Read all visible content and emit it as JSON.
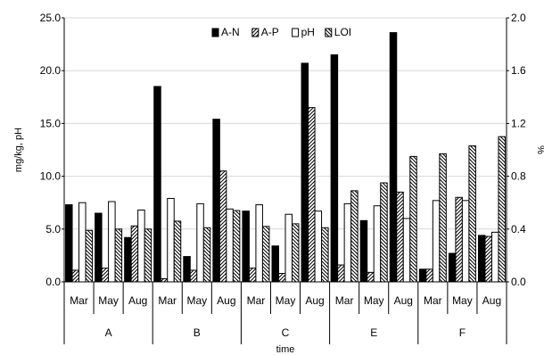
{
  "chart_data": {
    "type": "bar",
    "title": "",
    "xlabel": "time",
    "ylabel": "mg/kg, pH",
    "y2label": "%",
    "ylim": [
      0,
      25
    ],
    "y2lim": [
      0,
      2.0
    ],
    "yticks": [
      "0.0",
      "5.0",
      "10.0",
      "15.0",
      "20.0",
      "25.0"
    ],
    "y2ticks": [
      "0.0",
      "0.4",
      "0.8",
      "1.2",
      "1.6",
      "2.0"
    ],
    "grid": true,
    "legend_position": "top-right",
    "groups": [
      {
        "name": "A",
        "months": [
          "Mar",
          "May",
          "Aug"
        ]
      },
      {
        "name": "B",
        "months": [
          "Mar",
          "May",
          "Aug"
        ]
      },
      {
        "name": "C",
        "months": [
          "Mar",
          "May",
          "Aug"
        ]
      },
      {
        "name": "E",
        "months": [
          "Mar",
          "May",
          "Aug"
        ]
      },
      {
        "name": "F",
        "months": [
          "Mar",
          "May",
          "Aug"
        ]
      }
    ],
    "series": [
      {
        "name": "A-N",
        "axis": "left",
        "pattern": "solid",
        "values": [
          7.3,
          6.5,
          4.2,
          18.5,
          2.4,
          15.4,
          6.7,
          3.4,
          20.7,
          21.5,
          5.8,
          23.6,
          1.2,
          2.7,
          4.4
        ]
      },
      {
        "name": "A-P",
        "axis": "left",
        "pattern": "forward-hatch",
        "values": [
          1.1,
          1.3,
          5.3,
          0.3,
          1.1,
          10.5,
          1.3,
          0.8,
          16.5,
          1.6,
          0.9,
          8.5,
          1.2,
          8.0,
          4.3
        ]
      },
      {
        "name": "pH",
        "axis": "left",
        "pattern": "white",
        "values": [
          7.5,
          7.6,
          6.8,
          7.9,
          7.4,
          6.9,
          7.3,
          6.4,
          6.7,
          7.4,
          7.2,
          6.0,
          7.7,
          7.7,
          4.7
        ]
      },
      {
        "name": "LOI",
        "axis": "right",
        "pattern": "back-hatch",
        "values": [
          0.39,
          0.4,
          0.4,
          0.46,
          0.41,
          0.54,
          0.42,
          0.44,
          0.41,
          0.69,
          0.75,
          0.95,
          0.97,
          1.03,
          1.1
        ]
      }
    ]
  }
}
